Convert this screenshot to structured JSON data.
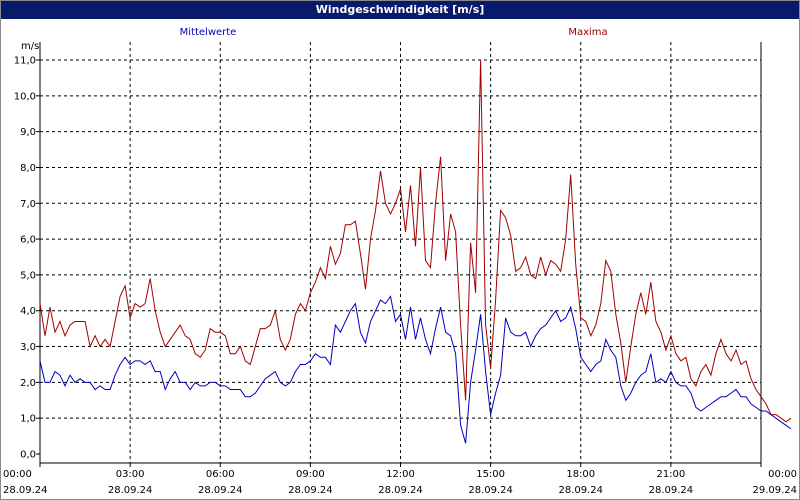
{
  "window": {
    "title": "Windgeschwindigkeit [m/s]"
  },
  "legend": {
    "left": "Mittelwerte",
    "right": "Maxima"
  },
  "colors": {
    "mean": "#0000c0",
    "max": "#a00000",
    "grid": "#000000",
    "titlebar": "#0a1a6b"
  },
  "chart_data": {
    "type": "line",
    "title": "Windgeschwindigkeit [m/s]",
    "ylabel": "m/s",
    "ylim": [
      0,
      11
    ],
    "yticks": [
      "0,0",
      "1,0",
      "2,0",
      "3,0",
      "4,0",
      "5,0",
      "6,0",
      "7,0",
      "8,0",
      "9,0",
      "10,0",
      "11,0"
    ],
    "xticks": [
      {
        "time": "00:00",
        "date": "28.09.24"
      },
      {
        "time": "03:00",
        "date": "28.09.24"
      },
      {
        "time": "06:00",
        "date": "28.09.24"
      },
      {
        "time": "09:00",
        "date": "28.09.24"
      },
      {
        "time": "12:00",
        "date": "28.09.24"
      },
      {
        "time": "15:00",
        "date": "28.09.24"
      },
      {
        "time": "18:00",
        "date": "28.09.24"
      },
      {
        "time": "21:00",
        "date": "28.09.24"
      },
      {
        "time": "00:00",
        "date": "29.09.24"
      }
    ],
    "x_step_minutes": 10,
    "grid": true,
    "series": [
      {
        "name": "Maxima",
        "values": [
          4.2,
          3.3,
          4.1,
          3.4,
          3.7,
          3.3,
          3.6,
          3.7,
          3.7,
          3.7,
          3.0,
          3.3,
          3.0,
          3.2,
          3.0,
          3.7,
          4.4,
          4.7,
          3.8,
          4.2,
          4.1,
          4.2,
          4.9,
          4.0,
          3.4,
          3.0,
          3.2,
          3.4,
          3.6,
          3.3,
          3.2,
          2.8,
          2.7,
          2.9,
          3.5,
          3.4,
          3.4,
          3.3,
          2.8,
          2.8,
          3.0,
          2.6,
          2.5,
          3.0,
          3.5,
          3.5,
          3.6,
          4.0,
          3.2,
          2.9,
          3.2,
          3.9,
          4.2,
          4.0,
          4.5,
          4.8,
          5.2,
          4.9,
          5.8,
          5.3,
          5.6,
          6.4,
          6.4,
          6.5,
          5.6,
          4.6,
          6.0,
          6.8,
          7.9,
          7.0,
          6.7,
          7.0,
          7.4,
          6.2,
          7.5,
          5.8,
          8.0,
          5.4,
          5.2,
          7.0,
          8.3,
          5.4,
          6.7,
          6.2,
          3.6,
          1.5,
          5.9,
          4.5,
          11.0,
          3.6,
          2.4,
          4.3,
          6.8,
          6.6,
          6.1,
          5.1,
          5.2,
          5.5,
          5.0,
          4.9,
          5.5,
          5.0,
          5.4,
          5.3,
          5.1,
          6.0,
          7.8,
          5.3,
          3.8,
          3.7,
          3.3,
          3.6,
          4.2,
          5.4,
          5.1,
          3.9,
          3.1,
          2.0,
          3.0,
          3.9,
          4.5,
          3.9,
          4.8,
          3.7,
          3.4,
          2.9,
          3.3,
          2.8,
          2.6,
          2.7,
          2.1,
          1.9,
          2.3,
          2.5,
          2.2,
          2.8,
          3.2,
          2.8,
          2.6,
          2.9,
          2.5,
          2.6,
          2.1,
          1.8,
          1.6,
          1.4,
          1.1,
          1.1,
          1.0,
          0.9,
          1.0
        ]
      },
      {
        "name": "Mittelwerte",
        "values": [
          2.6,
          2.0,
          2.0,
          2.3,
          2.2,
          1.9,
          2.2,
          2.0,
          2.1,
          2.0,
          2.0,
          1.8,
          1.9,
          1.8,
          1.8,
          2.2,
          2.5,
          2.7,
          2.5,
          2.6,
          2.6,
          2.5,
          2.6,
          2.3,
          2.3,
          1.8,
          2.1,
          2.3,
          2.0,
          2.0,
          1.8,
          2.0,
          1.9,
          1.9,
          2.0,
          2.0,
          1.9,
          1.9,
          1.8,
          1.8,
          1.8,
          1.6,
          1.6,
          1.7,
          1.9,
          2.1,
          2.2,
          2.3,
          2.0,
          1.9,
          2.0,
          2.3,
          2.5,
          2.5,
          2.6,
          2.8,
          2.7,
          2.7,
          2.5,
          3.6,
          3.4,
          3.7,
          4.0,
          4.2,
          3.4,
          3.1,
          3.7,
          4.0,
          4.3,
          4.2,
          4.4,
          3.7,
          3.9,
          3.2,
          4.1,
          3.2,
          3.8,
          3.2,
          2.8,
          3.5,
          4.1,
          3.4,
          3.3,
          2.8,
          0.8,
          0.3,
          2.0,
          2.9,
          3.9,
          2.3,
          1.1,
          1.7,
          2.2,
          3.8,
          3.4,
          3.3,
          3.3,
          3.4,
          3.0,
          3.3,
          3.5,
          3.6,
          3.8,
          4.0,
          3.7,
          3.8,
          4.1,
          3.5,
          2.7,
          2.5,
          2.3,
          2.5,
          2.6,
          3.2,
          2.9,
          2.7,
          1.9,
          1.5,
          1.7,
          2.0,
          2.2,
          2.3,
          2.8,
          2.0,
          2.1,
          2.0,
          2.3,
          2.0,
          1.9,
          1.9,
          1.7,
          1.3,
          1.2,
          1.3,
          1.4,
          1.5,
          1.6,
          1.6,
          1.7,
          1.8,
          1.6,
          1.6,
          1.4,
          1.3,
          1.2,
          1.2,
          1.1,
          1.0,
          0.9,
          0.8,
          0.7
        ]
      }
    ]
  }
}
